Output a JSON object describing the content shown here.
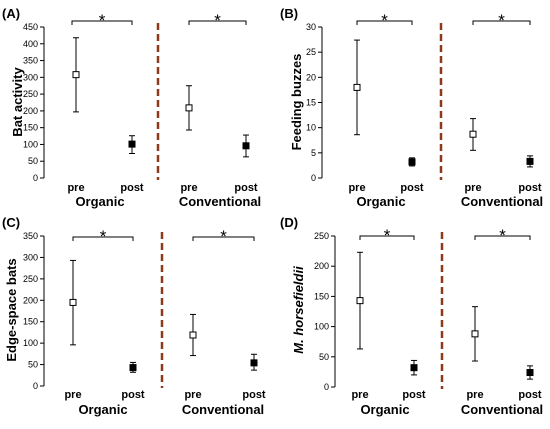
{
  "chart_data": [
    {
      "type": "scatter",
      "panel_label": "(A)",
      "ylabel": "Bat activity",
      "ylabel_italic": false,
      "ylim": [
        0,
        450
      ],
      "yticks": [
        "0",
        "50",
        "100",
        "150",
        "200",
        "250",
        "300",
        "350",
        "400",
        "450"
      ],
      "groups": [
        {
          "name": "Organic",
          "categories": [
            "pre",
            "post"
          ],
          "values": [
            308,
            101
          ],
          "error_low": [
            197,
            73
          ],
          "error_high": [
            418,
            126
          ],
          "significance": "*"
        },
        {
          "name": "Conventional",
          "categories": [
            "pre",
            "post"
          ],
          "values": [
            209,
            96
          ],
          "error_low": [
            143,
            63
          ],
          "error_high": [
            275,
            128
          ],
          "significance": "*"
        }
      ],
      "marker_fill": [
        "#ffffff",
        "#000000"
      ],
      "divider_color": "#8b3a1a"
    },
    {
      "type": "scatter",
      "panel_label": "(B)",
      "ylabel": "Feeding buzzes",
      "ylabel_italic": false,
      "ylim": [
        0,
        30
      ],
      "yticks": [
        "0",
        "5",
        "10",
        "15",
        "20",
        "25",
        "30"
      ],
      "groups": [
        {
          "name": "Organic",
          "categories": [
            "pre",
            "post"
          ],
          "values": [
            18,
            3.2
          ],
          "error_low": [
            8.6,
            2.4
          ],
          "error_high": [
            27.4,
            4.0
          ],
          "significance": "*"
        },
        {
          "name": "Conventional",
          "categories": [
            "pre",
            "post"
          ],
          "values": [
            8.7,
            3.3
          ],
          "error_low": [
            5.5,
            2.2
          ],
          "error_high": [
            11.8,
            4.4
          ],
          "significance": "*"
        }
      ],
      "marker_fill": [
        "#ffffff",
        "#000000"
      ],
      "divider_color": "#8b3a1a"
    },
    {
      "type": "scatter",
      "panel_label": "(C)",
      "ylabel": "Edge-space bats",
      "ylabel_italic": false,
      "ylim": [
        0,
        350
      ],
      "yticks": [
        "0",
        "50",
        "100",
        "150",
        "200",
        "250",
        "300",
        "350"
      ],
      "groups": [
        {
          "name": "Organic",
          "categories": [
            "pre",
            "post"
          ],
          "values": [
            195,
            43
          ],
          "error_low": [
            96,
            32
          ],
          "error_high": [
            293,
            55
          ],
          "significance": "*"
        },
        {
          "name": "Conventional",
          "categories": [
            "pre",
            "post"
          ],
          "values": [
            119,
            54
          ],
          "error_low": [
            71,
            37
          ],
          "error_high": [
            167,
            74
          ],
          "significance": "*"
        }
      ],
      "marker_fill": [
        "#ffffff",
        "#000000"
      ],
      "divider_color": "#8b3a1a"
    },
    {
      "type": "scatter",
      "panel_label": "(D)",
      "ylabel": "M. horsefieldii",
      "ylabel_italic": true,
      "ylim": [
        0,
        250
      ],
      "yticks": [
        "0",
        "50",
        "100",
        "150",
        "200",
        "250"
      ],
      "groups": [
        {
          "name": "Organic",
          "categories": [
            "pre",
            "post"
          ],
          "values": [
            143,
            32
          ],
          "error_low": [
            63,
            20
          ],
          "error_high": [
            223,
            44
          ],
          "significance": "*"
        },
        {
          "name": "Conventional",
          "categories": [
            "pre",
            "post"
          ],
          "values": [
            88,
            24
          ],
          "error_low": [
            43,
            13
          ],
          "error_high": [
            133,
            35
          ],
          "significance": "*"
        }
      ],
      "marker_fill": [
        "#ffffff",
        "#000000"
      ],
      "divider_color": "#8b3a1a"
    }
  ]
}
